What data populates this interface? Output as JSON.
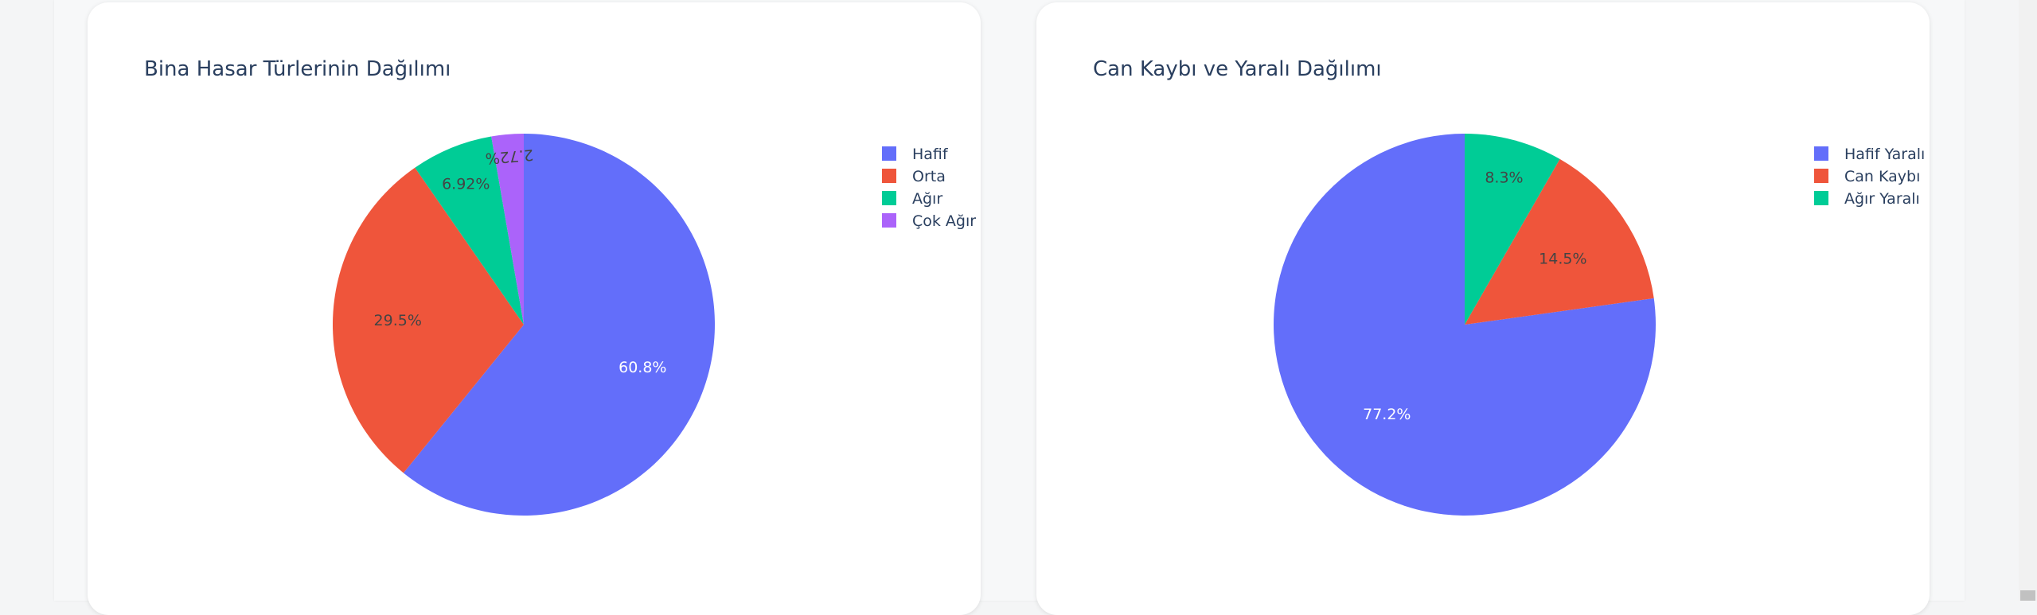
{
  "chart_data": [
    {
      "type": "pie",
      "title": "Bina Hasar Türlerinin Dağılımı",
      "labels": [
        "Hafif",
        "Orta",
        "Ağır",
        "Çok Ağır"
      ],
      "values": [
        60.8,
        29.5,
        6.92,
        2.72
      ],
      "value_labels": [
        "60.8%",
        "29.5%",
        "6.92%",
        "2.72%"
      ],
      "colors": [
        "#636efa",
        "#ef553b",
        "#00cc96",
        "#ab63fa"
      ],
      "label_colors": [
        "#ffffff",
        "#444444",
        "#444444",
        "#444444"
      ],
      "direction": "clockwise",
      "start": "top",
      "legend_position": "top-right"
    },
    {
      "type": "pie",
      "title": "Can Kaybı ve Yaralı Dağılımı",
      "labels": [
        "Hafif Yaralı",
        "Can Kaybı",
        "Ağır Yaralı"
      ],
      "values": [
        77.2,
        14.5,
        8.3
      ],
      "value_labels": [
        "77.2%",
        "14.5%",
        "8.3%"
      ],
      "colors": [
        "#636efa",
        "#ef553b",
        "#00cc96"
      ],
      "label_colors": [
        "#ffffff",
        "#444444",
        "#444444"
      ],
      "direction": "counterclockwise",
      "start": "top",
      "legend_position": "top-right"
    }
  ]
}
